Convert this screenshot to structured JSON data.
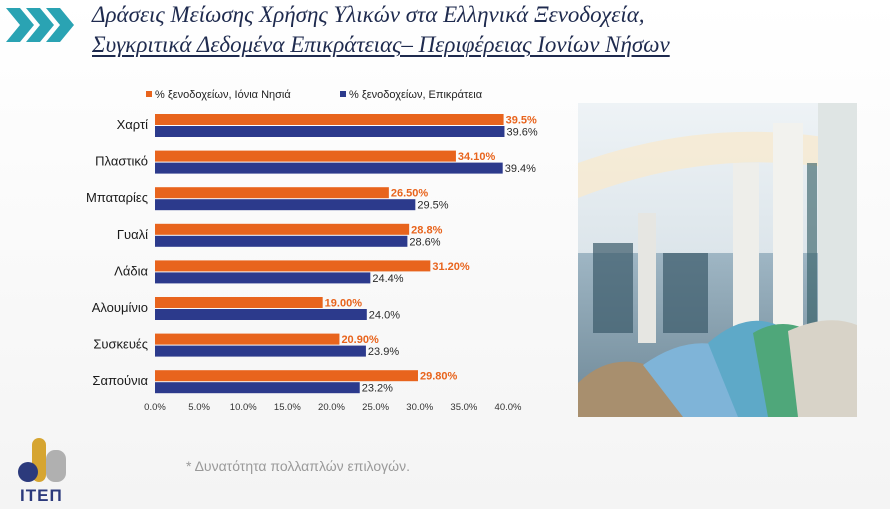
{
  "header": {
    "title_line1": "Δράσεις Μείωσης Χρήσης Υλικών στα Ελληνικά Ξενοδοχεία,",
    "title_line2": "Συγκριτικά Δεδομένα Επικράτειας– Περιφέρειας Ιονίων Νήσων"
  },
  "colors": {
    "series1": "#e8641d",
    "series2": "#2c3a8c",
    "title": "#1e2a4e",
    "accent": "#2aa3b3"
  },
  "chart_data": {
    "type": "bar",
    "orientation": "horizontal",
    "categories": [
      "Χαρτί",
      "Πλαστικό",
      "Μπαταρίες",
      "Γυαλί",
      "Λάδια",
      "Αλουμίνιο",
      "Συσκευές",
      "Σαπούνια"
    ],
    "series": [
      {
        "name": "% ξενοδοχείων, Ιόνια Νησιά",
        "values": [
          39.5,
          34.1,
          26.5,
          28.8,
          31.2,
          19.0,
          20.9,
          29.8
        ],
        "labels": [
          "39.5%",
          "34.10%",
          "26.50%",
          "28.8%",
          "31.20%",
          "19.00%",
          "20.90%",
          "29.80%"
        ]
      },
      {
        "name": "% ξενοδοχείων, Επικράτεια",
        "values": [
          39.6,
          39.4,
          29.5,
          28.6,
          24.4,
          24.0,
          23.9,
          23.2
        ],
        "labels": [
          "39.6%",
          "39.4%",
          "29.5%",
          "28.6%",
          "24.4%",
          "24.0%",
          "23.9%",
          "23.2%"
        ]
      }
    ],
    "xlim": [
      0,
      40
    ],
    "ticks": [
      "0.0%",
      "5.0%",
      "10.0%",
      "15.0%",
      "20.0%",
      "25.0%",
      "30.0%",
      "35.0%",
      "40.0%"
    ],
    "legend": "top",
    "grid": false
  },
  "footnote": "* Δυνατότητα πολλαπλών επιλογών.",
  "logo": {
    "text": "ΙΤΕΠ"
  },
  "photo": {
    "icon": "hotel-lobby-recycling-photo"
  }
}
